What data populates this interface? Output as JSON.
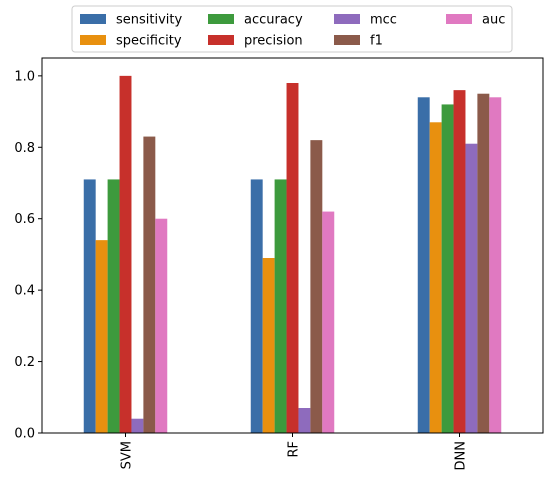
{
  "chart_data": {
    "type": "bar",
    "categories": [
      "SVM",
      "RF",
      "DNN"
    ],
    "series": [
      {
        "name": "sensitivity",
        "color": "#3a6ea8",
        "values": [
          0.71,
          0.71,
          0.94
        ]
      },
      {
        "name": "specificity",
        "color": "#e8900f",
        "values": [
          0.54,
          0.49,
          0.87
        ]
      },
      {
        "name": "accuracy",
        "color": "#3d9a3d",
        "values": [
          0.71,
          0.71,
          0.92
        ]
      },
      {
        "name": "precision",
        "color": "#c7302b",
        "values": [
          1.0,
          0.98,
          0.96
        ]
      },
      {
        "name": "mcc",
        "color": "#8e6bbd",
        "values": [
          0.04,
          0.07,
          0.81
        ]
      },
      {
        "name": "f1",
        "color": "#8b5a4a",
        "values": [
          0.83,
          0.82,
          0.95
        ]
      },
      {
        "name": "auc",
        "color": "#e079c1",
        "values": [
          0.6,
          0.62,
          0.94
        ]
      }
    ],
    "ylim": [
      0,
      1.05
    ],
    "yticks": [
      "0.0",
      "0.2",
      "0.4",
      "0.6",
      "0.8",
      "1.0"
    ],
    "grid": false,
    "legend_position": "top-center",
    "xlabel": "",
    "ylabel": "",
    "title": ""
  }
}
